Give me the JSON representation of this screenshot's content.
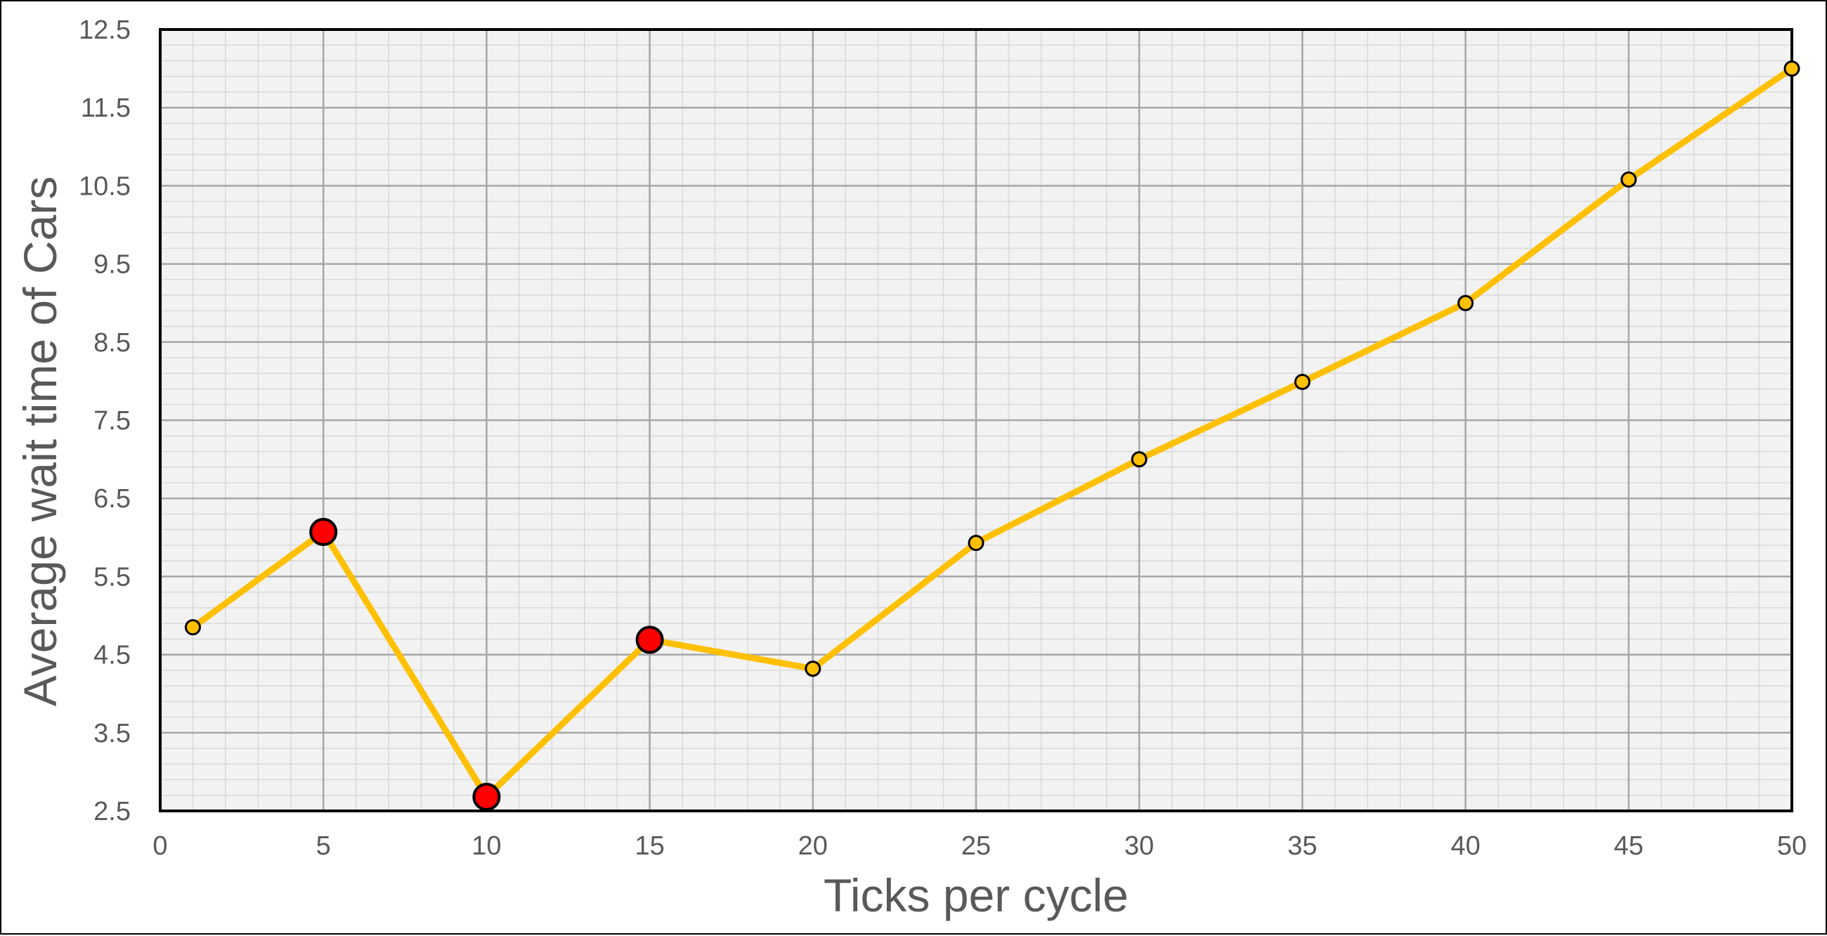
{
  "chart_data": {
    "type": "line",
    "xlabel": "Ticks per cycle",
    "ylabel": "Average wait time of Cars",
    "xlim": [
      0,
      50
    ],
    "ylim": [
      2.5,
      12.5
    ],
    "x_ticks": [
      "0",
      "5",
      "10",
      "15",
      "20",
      "25",
      "30",
      "35",
      "40",
      "45",
      "50"
    ],
    "y_ticks": [
      "2.5",
      "3.5",
      "4.5",
      "5.5",
      "6.5",
      "7.5",
      "8.5",
      "9.5",
      "10.5",
      "11.5",
      "12.5"
    ],
    "grid": "major and minor",
    "series": [
      {
        "x": [
          1,
          5,
          10,
          15,
          20,
          25,
          30,
          35,
          40,
          45,
          50
        ],
        "y": [
          4.85,
          6.07,
          2.68,
          4.69,
          4.32,
          5.93,
          7.0,
          7.99,
          9.0,
          10.58,
          12.0
        ],
        "highlighted": [
          false,
          true,
          true,
          true,
          false,
          false,
          false,
          false,
          false,
          false,
          false
        ]
      }
    ],
    "colors": {
      "line": "#FFC000",
      "marker": "#FFC000",
      "highlight_marker": "#FF0000",
      "marker_edge": "#000000",
      "plot_background": "#F2F2F2",
      "major_grid": "#A6A6A6",
      "minor_grid": "#D9D9D9"
    }
  }
}
